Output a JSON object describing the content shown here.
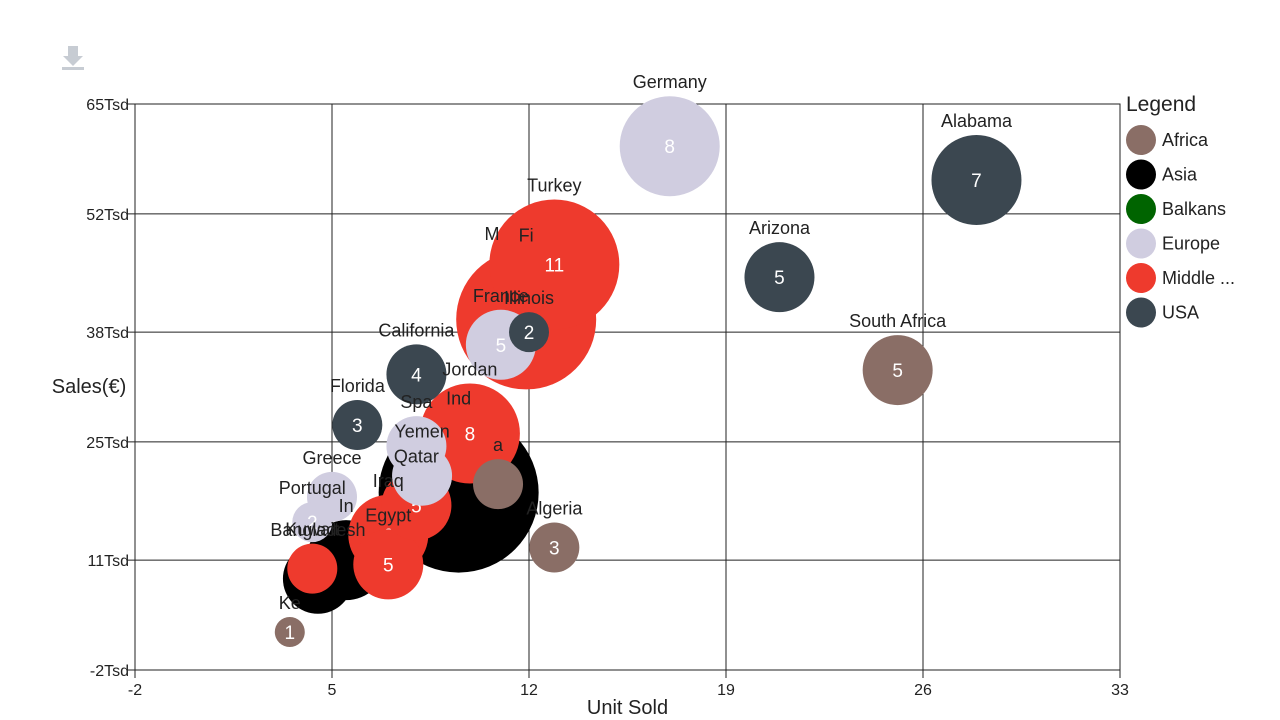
{
  "toolbar": {
    "download_icon": "download-icon"
  },
  "chart_data": {
    "type": "scatter",
    "subtype": "bubble",
    "xlabel": "Unit Sold",
    "ylabel": "Sales(€)",
    "xlim": [
      -2,
      33
    ],
    "ylim": [
      -2,
      65
    ],
    "x_ticks": [
      "-2",
      "5",
      "12",
      "19",
      "26",
      "33"
    ],
    "y_ticks": [
      "-2Tsd",
      "11Tsd",
      "25Tsd",
      "38Tsd",
      "52Tsd",
      "65Tsd"
    ],
    "x_tick_values": [
      -2,
      5,
      12,
      19,
      26,
      33
    ],
    "y_tick_values": [
      -2,
      11,
      25,
      38,
      52,
      65
    ],
    "grid": true,
    "legend": {
      "title": "Legend",
      "position": "right",
      "items": [
        {
          "label": "Africa",
          "color": "#8a6e66"
        },
        {
          "label": "Asia",
          "color": "#000000"
        },
        {
          "label": "Balkans",
          "color": "#006400"
        },
        {
          "label": "Europe",
          "color": "#d0cde0"
        },
        {
          "label": "Middle ...",
          "color": "#ee3a2d"
        },
        {
          "label": "USA",
          "color": "#3b4750"
        }
      ]
    },
    "points": [
      {
        "label": "Kenya",
        "display_label": "Ke",
        "series": "Africa",
        "x": 3.5,
        "y": 2.5,
        "size": 1,
        "value_label": "1"
      },
      {
        "label": "Algeria",
        "series": "Africa",
        "x": 12.9,
        "y": 12.5,
        "size": 3,
        "value_label": "3"
      },
      {
        "label": "South Africa",
        "series": "Africa",
        "x": 25.1,
        "y": 33.5,
        "size": 5,
        "value_label": "5"
      },
      {
        "label": "Nigeria",
        "display_label": "a",
        "series": "Africa",
        "x": 10.9,
        "y": 20.0,
        "size": 3,
        "value_label": ""
      },
      {
        "label": "Bangladesh",
        "series": "Asia",
        "x": 4.5,
        "y": 8.8,
        "size": 5,
        "value_label": "5"
      },
      {
        "label": "India",
        "display_label": "Ind",
        "series": "Asia",
        "x": 9.5,
        "y": 19.0,
        "size": 14,
        "value_label": ""
      },
      {
        "label": "Indonesia",
        "display_label": "In",
        "series": "Asia",
        "x": 5.5,
        "y": 11.0,
        "size": 6,
        "value_label": ""
      },
      {
        "label": "Kuwait",
        "series": "Middle East",
        "x": 4.3,
        "y": 10.0,
        "size": 3,
        "value_label": ""
      },
      {
        "label": "Egypt",
        "series": "Middle East",
        "x": 7.0,
        "y": 10.5,
        "size": 5,
        "value_label": "5"
      },
      {
        "label": "Iraq",
        "series": "Middle East",
        "x": 7.0,
        "y": 14.0,
        "size": 6,
        "value_label": "6"
      },
      {
        "label": "Qatar",
        "series": "Middle East",
        "x": 8.0,
        "y": 17.5,
        "size": 5,
        "value_label": "5"
      },
      {
        "label": "Jordan",
        "series": "Middle East",
        "x": 9.9,
        "y": 26.0,
        "size": 8,
        "value_label": "8"
      },
      {
        "label": "Syria",
        "display_label": "Fi",
        "series": "Middle East",
        "x": 11.9,
        "y": 39.5,
        "size": 12,
        "value_label": ""
      },
      {
        "label": "Turkey",
        "series": "Middle East",
        "x": 12.9,
        "y": 46.0,
        "size": 11,
        "value_label": "11"
      },
      {
        "label": "Portugal",
        "series": "Europe",
        "x": 4.3,
        "y": 15.5,
        "size": 2,
        "value_label": "2"
      },
      {
        "label": "Greece",
        "series": "Europe",
        "x": 5.0,
        "y": 18.5,
        "size": 3,
        "value_label": ""
      },
      {
        "label": "Spain",
        "display_label": "Spa",
        "series": "Europe",
        "x": 8.0,
        "y": 24.5,
        "size": 4,
        "value_label": ""
      },
      {
        "label": "Yemen",
        "series": "Europe",
        "x": 8.2,
        "y": 21.0,
        "size": 4,
        "value_label": ""
      },
      {
        "label": "France",
        "series": "Europe",
        "x": 11.0,
        "y": 36.5,
        "size": 5,
        "value_label": "5"
      },
      {
        "label": "Germany",
        "series": "Europe",
        "x": 17.0,
        "y": 60.0,
        "size": 8,
        "value_label": "8"
      },
      {
        "label": "Florida",
        "series": "USA",
        "x": 5.9,
        "y": 27.0,
        "size": 3,
        "value_label": "3"
      },
      {
        "label": "California",
        "series": "USA",
        "x": 8.0,
        "y": 33.0,
        "size": 4,
        "value_label": "4"
      },
      {
        "label": "Illinois",
        "series": "USA",
        "x": 12.0,
        "y": 38.0,
        "size": 2,
        "value_label": "2"
      },
      {
        "label": "Arizona",
        "series": "USA",
        "x": 20.9,
        "y": 44.5,
        "size": 5,
        "value_label": "5"
      },
      {
        "label": "Alabama",
        "series": "USA",
        "x": 27.9,
        "y": 56.0,
        "size": 7,
        "value_label": "7"
      }
    ],
    "annotations": [
      "M"
    ]
  }
}
